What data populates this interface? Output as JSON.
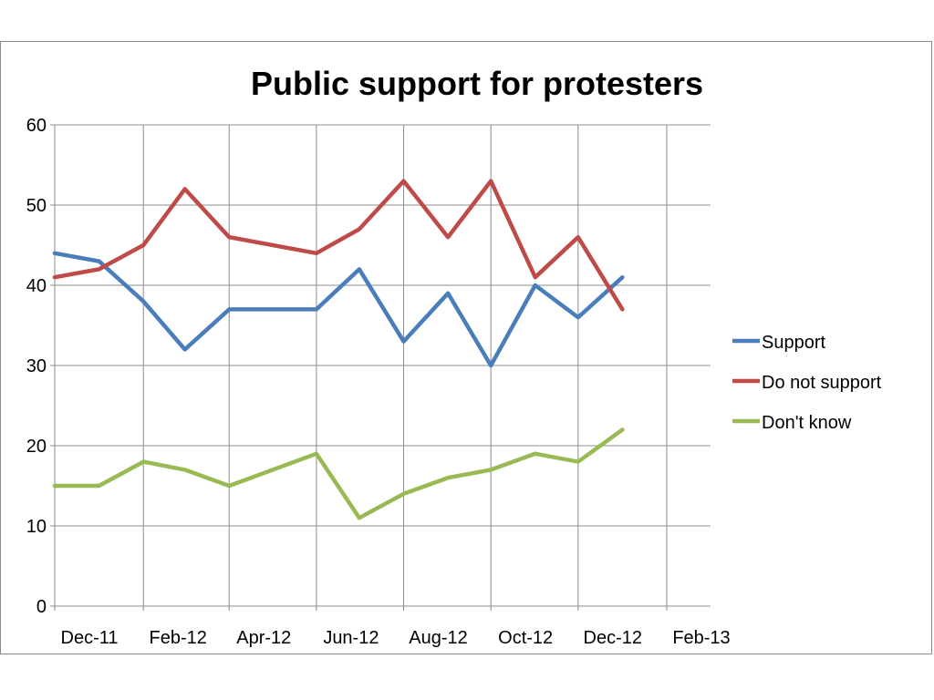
{
  "chart_data": {
    "type": "line",
    "title": "Public support for protesters",
    "xlabel": "",
    "ylabel": "",
    "ylim": [
      0,
      60
    ],
    "y_ticks": [
      "0",
      "10",
      "20",
      "30",
      "40",
      "50",
      "60"
    ],
    "x_ticks": [
      "Dec-11",
      "Feb-12",
      "Apr-12",
      "Jun-12",
      "Aug-12",
      "Oct-12",
      "Dec-12",
      "Feb-13"
    ],
    "x": [
      "2011-12-01",
      "2012-01-01",
      "2012-02-01",
      "2012-03-01",
      "2012-04-01",
      "2012-06-01",
      "2012-07-01",
      "2012-08-01",
      "2012-09-01",
      "2012-10-01",
      "2012-11-01",
      "2012-12-01",
      "2013-01-01"
    ],
    "series": [
      {
        "name": "Support",
        "color": "#4a7ebb",
        "values": [
          44,
          43,
          38,
          32,
          37,
          37,
          42,
          33,
          39,
          30,
          40,
          36,
          41
        ]
      },
      {
        "name": "Do not support",
        "color": "#be4b48",
        "values": [
          41,
          42,
          45,
          52,
          46,
          44,
          47,
          53,
          46,
          53,
          41,
          46,
          37
        ]
      },
      {
        "name": "Don't know",
        "color": "#98b954",
        "values": [
          15,
          15,
          18,
          17,
          15,
          19,
          11,
          14,
          16,
          17,
          19,
          18,
          22
        ]
      }
    ],
    "grid": true,
    "legend": "right"
  }
}
